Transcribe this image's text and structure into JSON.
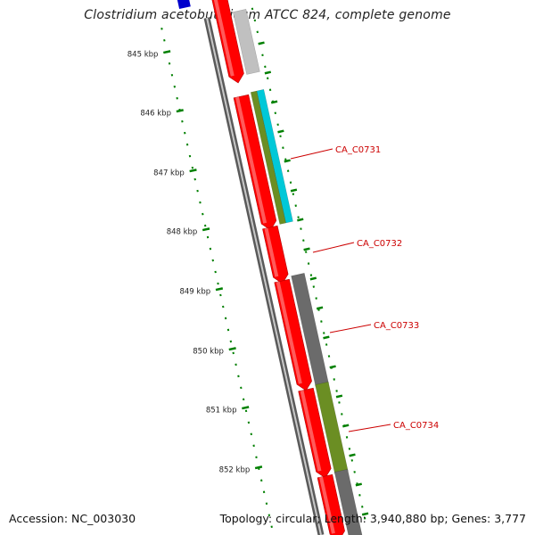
{
  "title": "Clostridium acetobutylicum ATCC 824, complete genome",
  "footer": {
    "accession": "Accession: NC_003030",
    "summary": "Topology: circular; Length: 3,940,880 bp; Genes: 3,777"
  },
  "colors": {
    "backbone": "#8c8c8c",
    "forward_gene": "#ff0000",
    "scale_tick": "#008000",
    "label": "#cc0000",
    "cog_gray": "#6b6b6b",
    "cog_light_gray": "#c0c0c0",
    "cog_olive": "#6b8e23",
    "cog_cyan": "#00c8d8",
    "cog_blue": "#0000cc"
  },
  "scale": {
    "unit": "kbp",
    "ticks": [
      845,
      846,
      847,
      848,
      849,
      850,
      851,
      852
    ]
  },
  "gene_labels": [
    "CA_C0731",
    "CA_C0732",
    "CA_C0733",
    "CA_C0734"
  ]
}
